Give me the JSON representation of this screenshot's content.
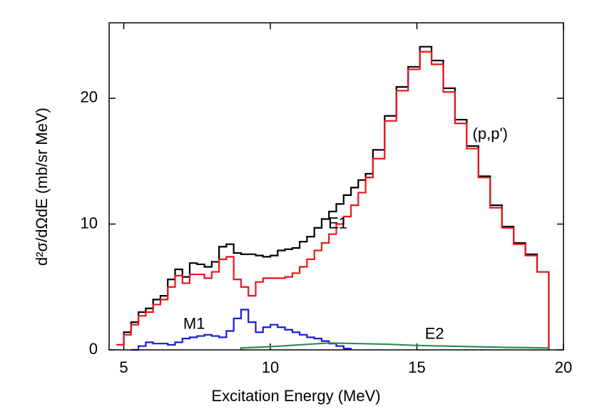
{
  "chart_data": {
    "type": "line",
    "xlabel": "Excitation Energy (MeV)",
    "ylabel": "d²σ/dΩdE (mb/sr MeV)",
    "xlim": [
      4.5,
      20
    ],
    "ylim": [
      0,
      26
    ],
    "xticks": [
      5,
      10,
      15,
      20
    ],
    "yticks": [
      0,
      10,
      20
    ],
    "series": [
      {
        "name": "(p,p')",
        "color": "#000000",
        "drawstyle": "steps-post",
        "label_at": [
          17.5,
          17.1
        ],
        "x": [
          4.75,
          5.0,
          5.25,
          5.5,
          5.75,
          6.0,
          6.25,
          6.5,
          6.75,
          7.0,
          7.25,
          7.5,
          7.75,
          8.0,
          8.25,
          8.5,
          8.75,
          9.0,
          9.25,
          9.5,
          9.75,
          10.0,
          10.25,
          10.5,
          10.75,
          11.0,
          11.25,
          11.5,
          11.75,
          12.0,
          12.25,
          12.5,
          12.75,
          13.0,
          13.25,
          13.5,
          13.9,
          14.3,
          14.7,
          15.1,
          15.5,
          15.9,
          16.3,
          16.7,
          17.1,
          17.5,
          17.9,
          18.3,
          18.7,
          19.1,
          19.5
        ],
        "values": [
          0.4,
          1.4,
          2.2,
          3.0,
          3.3,
          4.0,
          4.3,
          5.6,
          6.4,
          5.8,
          6.9,
          6.8,
          6.6,
          7.0,
          8.2,
          8.4,
          7.7,
          7.6,
          7.6,
          7.5,
          7.4,
          7.5,
          7.9,
          8.0,
          8.1,
          8.6,
          9.0,
          9.7,
          10.4,
          11.0,
          11.6,
          12.3,
          12.9,
          13.5,
          14.0,
          15.9,
          18.6,
          20.9,
          22.5,
          24.1,
          23.0,
          20.8,
          18.3,
          16.2,
          13.8,
          11.5,
          9.8,
          8.5,
          7.6,
          6.2,
          0
        ]
      },
      {
        "name": "E1",
        "color": "#e8161b",
        "drawstyle": "steps-post",
        "label_at": [
          12.3,
          10.0
        ],
        "x": [
          4.75,
          5.0,
          5.25,
          5.5,
          5.75,
          6.0,
          6.25,
          6.5,
          6.75,
          7.0,
          7.25,
          7.5,
          7.75,
          8.0,
          8.25,
          8.5,
          8.75,
          9.0,
          9.25,
          9.5,
          9.75,
          10.0,
          10.25,
          10.5,
          10.75,
          11.0,
          11.25,
          11.5,
          11.75,
          12.0,
          12.25,
          12.5,
          12.75,
          13.0,
          13.25,
          13.5,
          13.9,
          14.3,
          14.7,
          15.1,
          15.5,
          15.9,
          16.3,
          16.7,
          17.1,
          17.5,
          17.9,
          18.3,
          18.7,
          19.1,
          19.5
        ],
        "values": [
          0.4,
          1.2,
          2.0,
          2.7,
          3.0,
          3.6,
          4.0,
          5.0,
          5.9,
          5.3,
          6.0,
          6.0,
          5.7,
          6.2,
          7.2,
          7.4,
          5.6,
          5.0,
          4.3,
          5.4,
          5.7,
          5.7,
          5.7,
          5.8,
          6.1,
          6.6,
          7.2,
          7.9,
          8.5,
          9.2,
          10.0,
          10.6,
          11.5,
          12.5,
          13.7,
          15.2,
          18.2,
          20.6,
          22.3,
          23.7,
          22.7,
          20.5,
          18.0,
          16.0,
          13.7,
          11.3,
          9.7,
          8.4,
          7.5,
          6.2,
          0
        ]
      },
      {
        "name": "M1",
        "color": "#1a1adc",
        "drawstyle": "steps-post",
        "label_at": [
          7.4,
          2.0
        ],
        "x": [
          5.25,
          5.5,
          5.75,
          6.0,
          6.25,
          6.5,
          6.75,
          7.0,
          7.25,
          7.5,
          7.75,
          8.0,
          8.25,
          8.5,
          8.75,
          9.0,
          9.25,
          9.5,
          9.75,
          10.0,
          10.25,
          10.5,
          10.75,
          11.0,
          11.25,
          11.5,
          11.75,
          12.0,
          12.25,
          12.5,
          12.75
        ],
        "values": [
          0,
          0.3,
          0.6,
          0.5,
          0.5,
          0.4,
          0.6,
          0.9,
          1.0,
          1.1,
          1.2,
          1.1,
          1.0,
          1.5,
          2.5,
          3.2,
          2.2,
          1.4,
          1.8,
          2.0,
          1.8,
          1.6,
          1.4,
          1.2,
          1.0,
          0.9,
          0.7,
          0.5,
          0.3,
          0.1,
          0
        ]
      },
      {
        "name": "E2",
        "color": "#2e8b57",
        "drawstyle": "line",
        "label_at": [
          15.6,
          1.2
        ],
        "x": [
          9.0,
          9.0,
          10,
          11,
          12,
          13,
          14,
          15,
          16,
          17,
          18,
          19.5
        ],
        "values": [
          0,
          0.15,
          0.25,
          0.4,
          0.55,
          0.5,
          0.45,
          0.35,
          0.3,
          0.25,
          0.2,
          0.15
        ]
      }
    ]
  }
}
